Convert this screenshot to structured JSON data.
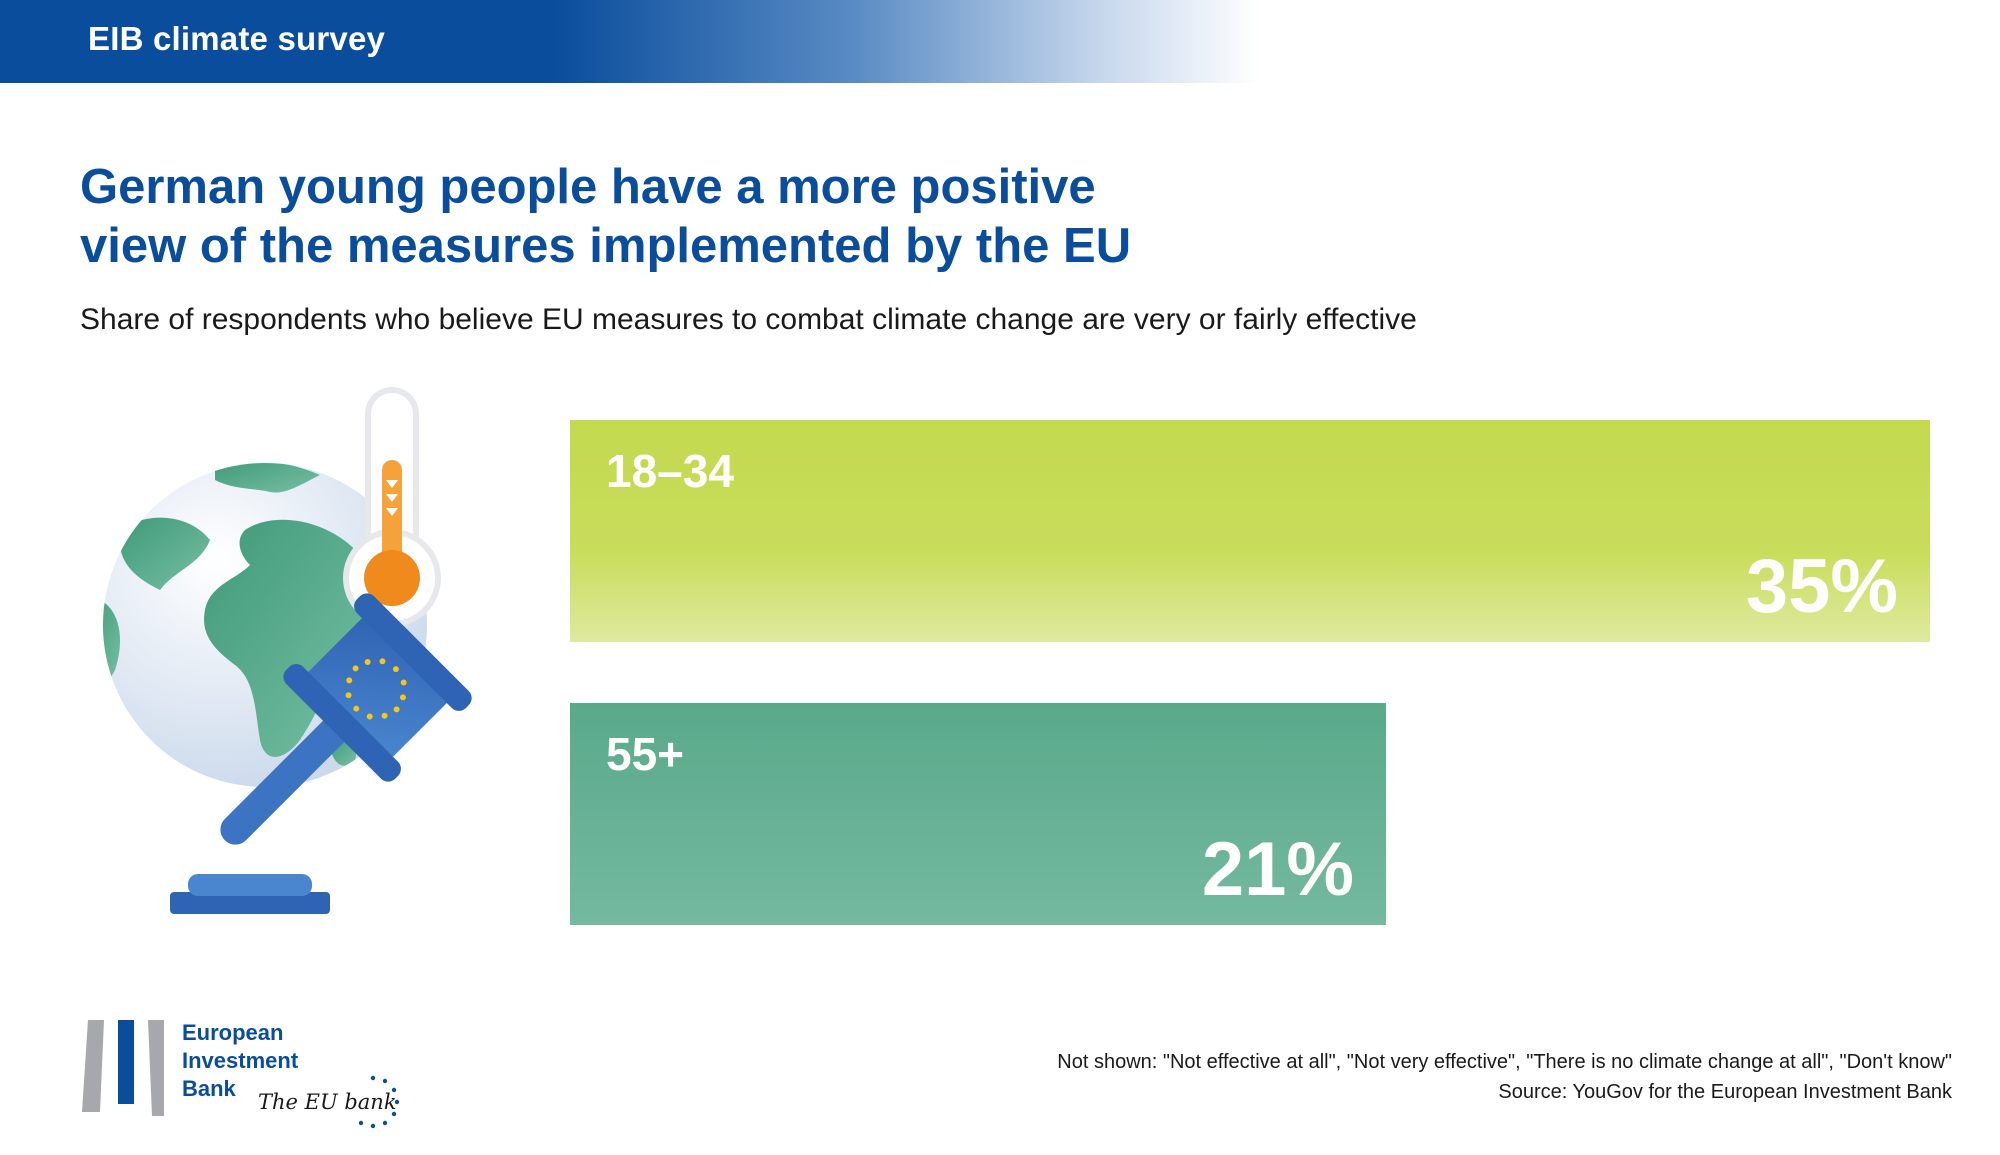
{
  "banner": {
    "label": "EIB climate survey"
  },
  "title_line1": "German young people have a more positive",
  "title_line2": "view of the measures implemented by the EU",
  "subtitle": "Share of respondents who believe EU measures to combat climate change are very or fairly effective",
  "chart_data": {
    "type": "bar",
    "orientation": "horizontal",
    "categories": [
      "18–34",
      "55+"
    ],
    "values": [
      35,
      21
    ],
    "value_labels": [
      "35%",
      "21%"
    ],
    "colors": [
      "#c3d94e",
      "#5aa98b"
    ],
    "xlim": [
      0,
      35
    ],
    "grid": false
  },
  "footnotes": {
    "not_shown": "Not shown: \"Not effective at all\", \"Not very effective\", \"There is no climate change at all\", \"Don't know\"",
    "source": "Source: YouGov for the European Investment Bank"
  },
  "logo": {
    "line1": "European",
    "line2": "Investment",
    "line3": "Bank",
    "tagline": "The EU bank"
  },
  "colors": {
    "brand_blue": "#0a4d9c",
    "bar_young": "#c3d94e",
    "bar_old": "#5aa98b"
  },
  "illustration": {
    "globe": "globe-icon",
    "thermometer": "thermometer-icon",
    "gavel": "gavel-icon"
  }
}
